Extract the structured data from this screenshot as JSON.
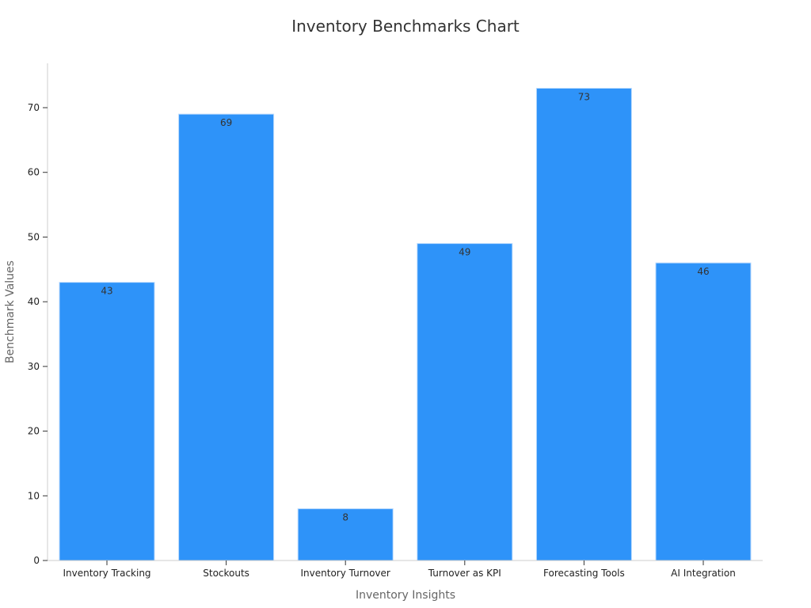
{
  "chart_data": {
    "type": "bar",
    "title": "Inventory Benchmarks Chart",
    "xlabel": "Inventory Insights",
    "ylabel": "Benchmark Values",
    "categories": [
      "Inventory Tracking",
      "Stockouts",
      "Inventory Turnover",
      "Turnover as KPI",
      "Forecasting Tools",
      "AI Integration"
    ],
    "values": [
      43,
      69,
      8,
      49,
      73,
      46
    ],
    "data_labels": [
      "43",
      "69",
      "8",
      "49",
      "73",
      "46"
    ],
    "ylim": [
      0,
      77
    ],
    "yticks": [
      0,
      10,
      20,
      30,
      40,
      50,
      60,
      70
    ],
    "ytick_labels": [
      "0",
      "10",
      "20",
      "30",
      "40",
      "50",
      "60",
      "70"
    ],
    "grid": false,
    "legend": "none",
    "bar_color": "#2e93f9",
    "bar_edge_color": "#b9dafd"
  }
}
